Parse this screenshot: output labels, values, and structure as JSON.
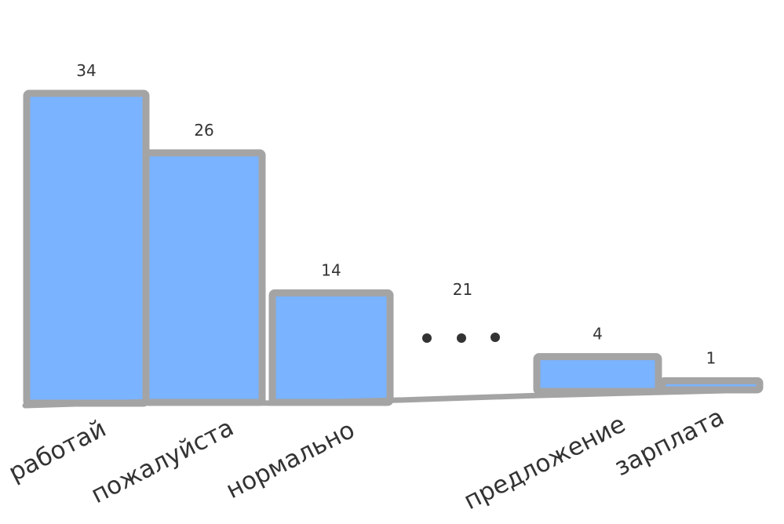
{
  "chart_data": {
    "type": "bar",
    "title": "",
    "xlabel": "",
    "ylabel": "",
    "ylim": [
      0,
      34
    ],
    "grid": false,
    "colors": {
      "bar_fill": "#7ab3ff",
      "bar_outline": "#a4a4a4",
      "text": "#333333"
    },
    "categories": [
      "работай",
      "пожалуйста",
      "нормально",
      "",
      "предложение",
      "зарплата"
    ],
    "values": [
      34,
      26,
      14,
      null,
      4,
      1
    ],
    "value_labels": [
      "34",
      "26",
      "14",
      "21",
      "4",
      "1"
    ],
    "annotations": [
      {
        "type": "ellipsis",
        "text": "• • •",
        "label": "21",
        "meaning": "omitted categories"
      }
    ]
  }
}
